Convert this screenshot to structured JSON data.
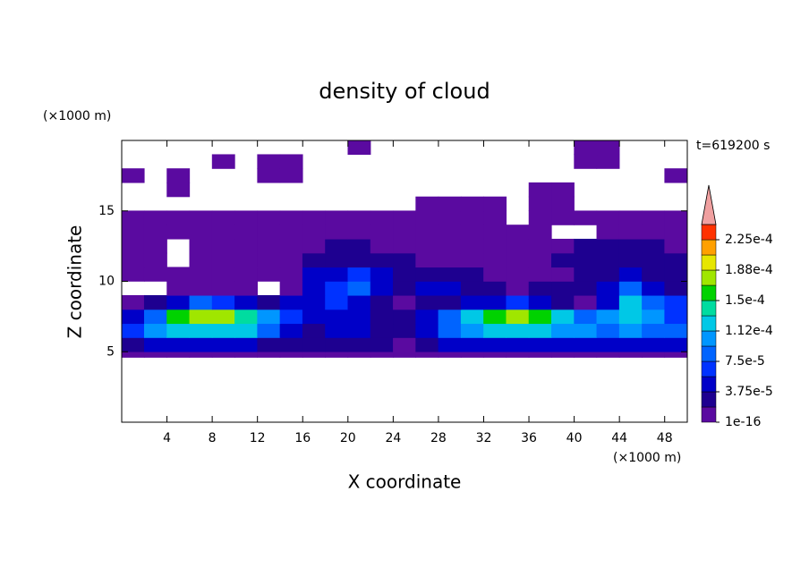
{
  "chart_data": {
    "type": "contour",
    "title": "density of cloud",
    "annotation": "t=619200 s",
    "xlabel": "X coordinate",
    "ylabel": "Z coordinate",
    "xunit": "(×1000 m)",
    "yunit": "(×1000 m)",
    "xlim": [
      0,
      50
    ],
    "ylim": [
      0,
      20
    ],
    "xticks": [
      4,
      8,
      12,
      16,
      20,
      24,
      28,
      32,
      36,
      40,
      44,
      48
    ],
    "yticks": [
      5,
      10,
      15
    ],
    "x_edges": [
      0,
      2,
      4,
      6,
      8,
      10,
      12,
      14,
      16,
      18,
      20,
      22,
      24,
      26,
      28,
      30,
      32,
      34,
      36,
      38,
      40,
      42,
      44,
      46,
      48,
      50
    ],
    "z_edges": [
      4.6,
      5,
      6,
      7,
      8,
      9,
      10,
      11,
      12,
      13,
      14,
      15,
      16,
      17,
      18,
      19,
      20
    ],
    "values": [
      [
        1e-06,
        1e-06,
        1e-06,
        1e-06,
        1e-06,
        1e-06,
        1e-06,
        1e-06,
        1e-06,
        1e-06,
        1e-06,
        1e-06,
        1e-06,
        1e-06,
        1e-06,
        1e-06,
        1e-06,
        1e-06,
        1e-06,
        1e-06,
        1e-06,
        1e-06,
        1e-06,
        1e-06,
        1e-06
      ],
      [
        3e-05,
        4e-05,
        4e-05,
        4e-05,
        4e-05,
        4e-05,
        3e-05,
        3e-05,
        2e-05,
        3e-05,
        3e-05,
        2e-05,
        1e-06,
        3e-05,
        4e-05,
        4e-05,
        4e-05,
        4e-05,
        4e-05,
        4e-05,
        4e-05,
        4e-05,
        4e-05,
        4e-05,
        4e-05
      ],
      [
        7e-05,
        0.0001,
        0.00012,
        0.00013,
        0.00013,
        0.00012,
        9e-05,
        5e-05,
        2e-05,
        4e-05,
        4e-05,
        3e-05,
        2e-05,
        5e-05,
        8e-05,
        0.00011,
        0.00012,
        0.000125,
        0.00012,
        0.00011,
        0.0001,
        9e-05,
        0.0001,
        9e-05,
        8e-05
      ],
      [
        5e-05,
        9e-05,
        0.00015,
        0.00018,
        0.00017,
        0.00014,
        0.0001,
        6e-05,
        4e-05,
        5e-05,
        4e-05,
        3e-05,
        2e-05,
        4e-05,
        8e-05,
        0.00013,
        0.00016,
        0.00017,
        0.00016,
        0.00013,
        9e-05,
        0.00011,
        0.00013,
        0.0001,
        7e-05
      ],
      [
        1e-06,
        2e-05,
        5e-05,
        8e-05,
        6e-05,
        4e-05,
        2e-05,
        5e-05,
        5e-05,
        6e-05,
        5e-05,
        3e-05,
        1e-06,
        3e-05,
        3e-05,
        4e-05,
        5e-05,
        6e-05,
        5e-05,
        3e-05,
        1e-06,
        5e-05,
        0.00012,
        9e-05,
        6e-05
      ],
      [
        null,
        null,
        1e-06,
        1e-06,
        1e-06,
        1e-06,
        null,
        1e-06,
        5e-05,
        6e-05,
        8e-05,
        5e-05,
        3e-05,
        4e-05,
        4e-05,
        2e-05,
        2e-05,
        1e-06,
        2e-05,
        2e-05,
        3e-05,
        5e-05,
        8e-05,
        4e-05,
        3e-05
      ],
      [
        1e-06,
        1e-06,
        1e-06,
        1e-06,
        1e-06,
        1e-06,
        1e-06,
        1e-06,
        4e-05,
        5e-05,
        6e-05,
        4e-05,
        2e-05,
        2e-05,
        2e-05,
        2e-05,
        1e-06,
        1e-06,
        1e-06,
        1e-06,
        2e-05,
        3e-05,
        4e-05,
        3e-05,
        2e-05
      ],
      [
        1e-06,
        1e-06,
        null,
        1e-06,
        1e-06,
        1e-06,
        1e-06,
        1e-06,
        2e-05,
        3e-05,
        2e-05,
        2e-05,
        2e-05,
        1e-06,
        1e-06,
        1e-06,
        1e-06,
        1e-06,
        1e-06,
        2e-05,
        2e-05,
        2e-05,
        2e-05,
        2e-05,
        2e-05
      ],
      [
        1e-06,
        1e-06,
        null,
        1e-06,
        1e-06,
        1e-06,
        1e-06,
        1e-06,
        1e-06,
        2e-05,
        2e-05,
        1e-06,
        1e-06,
        1e-06,
        1e-06,
        1e-06,
        1e-06,
        1e-06,
        1e-06,
        1e-06,
        2e-05,
        2e-05,
        2e-05,
        2e-05,
        1e-06
      ],
      [
        1e-06,
        1e-06,
        1e-06,
        1e-06,
        1e-06,
        1e-06,
        1e-06,
        1e-06,
        1e-06,
        1e-06,
        1e-06,
        1e-06,
        1e-06,
        1e-06,
        1e-06,
        1e-06,
        1e-06,
        1e-06,
        1e-06,
        null,
        null,
        1e-06,
        1e-06,
        1e-06,
        1e-06
      ],
      [
        1e-06,
        1e-06,
        1e-06,
        1e-06,
        1e-06,
        1e-06,
        1e-06,
        1e-06,
        1e-06,
        1e-06,
        1e-06,
        1e-06,
        1e-06,
        1e-06,
        1e-06,
        1e-06,
        1e-06,
        null,
        1e-06,
        1e-06,
        1e-06,
        1e-06,
        1e-06,
        1e-06,
        1e-06
      ],
      [
        null,
        null,
        null,
        null,
        null,
        null,
        null,
        null,
        null,
        null,
        null,
        null,
        null,
        1e-06,
        1e-06,
        1e-06,
        1e-06,
        null,
        1e-06,
        1e-06,
        null,
        null,
        null,
        null,
        null
      ],
      [
        null,
        null,
        1e-06,
        null,
        null,
        null,
        null,
        null,
        null,
        null,
        null,
        null,
        null,
        null,
        null,
        null,
        null,
        null,
        1e-06,
        1e-06,
        null,
        null,
        null,
        null,
        null
      ],
      [
        1e-06,
        null,
        1e-06,
        null,
        null,
        null,
        1e-06,
        1e-06,
        null,
        null,
        null,
        null,
        null,
        null,
        null,
        null,
        null,
        null,
        null,
        null,
        null,
        null,
        null,
        null,
        1e-06
      ],
      [
        null,
        null,
        null,
        null,
        1e-06,
        null,
        1e-06,
        1e-06,
        null,
        null,
        null,
        null,
        null,
        null,
        null,
        null,
        null,
        null,
        null,
        null,
        1e-06,
        1e-06,
        null,
        null,
        null
      ],
      [
        null,
        null,
        null,
        null,
        null,
        null,
        null,
        null,
        null,
        null,
        1e-06,
        null,
        null,
        null,
        null,
        null,
        null,
        null,
        null,
        null,
        1e-06,
        1e-06,
        null,
        null,
        null
      ]
    ],
    "levels": [
      {
        "value": 1e-16,
        "label": "1e-16"
      },
      1.875e-05,
      {
        "value": 3.75e-05,
        "label": "3.75e-5"
      },
      5.625e-05,
      {
        "value": 7.5e-05,
        "label": "7.5e-5"
      },
      9.375e-05,
      {
        "value": 0.000112,
        "label": "1.12e-4"
      },
      0.00013125,
      {
        "value": 0.00015,
        "label": "1.5e-4"
      },
      0.00016875,
      {
        "value": 0.000188,
        "label": "1.88e-4"
      },
      0.00020625,
      {
        "value": 0.000225,
        "label": "2.25e-4"
      },
      0.00024375
    ],
    "colors": [
      "#5a0aa0",
      "#1e0090",
      "#0000c8",
      "#0032ff",
      "#0064ff",
      "#0096ff",
      "#00c8e6",
      "#00dca0",
      "#00d200",
      "#a0e600",
      "#e6e600",
      "#ffa000",
      "#ff3200"
    ],
    "extend_color": "#f0a0a0"
  }
}
